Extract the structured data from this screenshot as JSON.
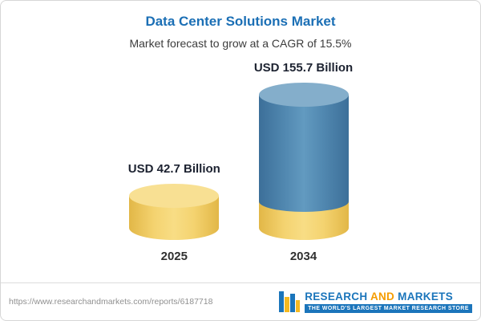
{
  "header": {
    "title": "Data Center Solutions Market",
    "subtitle": "Market forecast to grow at a CAGR of 15.5%"
  },
  "chart_data": {
    "type": "bar",
    "variant": "3d-cylinder-columns",
    "title": "Data Center Solutions Market",
    "subtitle": "Market forecast to grow at a CAGR of 15.5%",
    "categories": [
      "2025",
      "2034"
    ],
    "values": [
      42.7,
      155.7
    ],
    "unit": "USD Billion",
    "value_labels": [
      "USD 42.7 Billion",
      "USD 155.7 Billion"
    ],
    "cagr_percent": 15.5,
    "grid": false,
    "legend": "none",
    "colors": {
      "bar_2025": "#f2cd63",
      "bar_2034_upper": "#5289b1",
      "bar_2034_lower": "#f2cd63",
      "title_text": "#1b6fb5",
      "value_label_text": "#1c2230",
      "logo_blue": "#1b75bb",
      "logo_orange": "#f59c00"
    }
  },
  "footer": {
    "url": "https://www.researchandmarkets.com/reports/6187718",
    "logo": {
      "word1": "RESEARCH",
      "word2": "AND",
      "word3": "MARKETS",
      "tagline": "THE WORLD'S LARGEST MARKET RESEARCH STORE"
    }
  }
}
